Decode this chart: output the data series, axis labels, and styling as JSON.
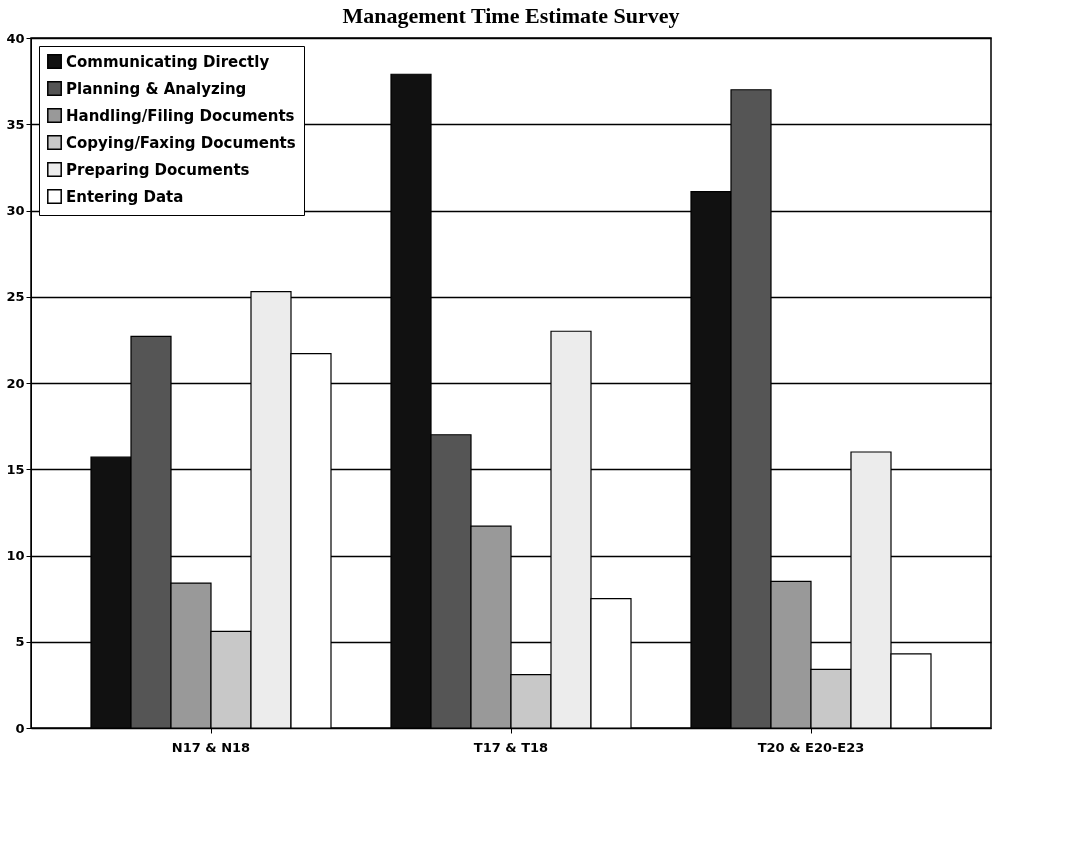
{
  "chart_data": {
    "type": "bar",
    "title": "Management Time Estimate Survey",
    "categories": [
      "N17 & N18",
      "T17 & T18",
      "T20 & E20-E23"
    ],
    "series": [
      {
        "name": "Communicating Directly",
        "color": "#111111",
        "values": [
          15.7,
          37.9,
          31.1
        ]
      },
      {
        "name": "Planning & Analyzing",
        "color": "#555555",
        "values": [
          22.7,
          17.0,
          37.0
        ]
      },
      {
        "name": "Handling/Filing Documents",
        "color": "#999999",
        "values": [
          8.4,
          11.7,
          8.5
        ]
      },
      {
        "name": "Copying/Faxing Documents",
        "color": "#c8c8c8",
        "values": [
          5.6,
          3.1,
          3.4
        ]
      },
      {
        "name": "Preparing Documents",
        "color": "#ececec",
        "values": [
          25.3,
          23.0,
          16.0
        ]
      },
      {
        "name": "Entering Data",
        "color": "#ffffff",
        "values": [
          21.7,
          7.5,
          4.3
        ]
      }
    ],
    "ylim": [
      0,
      40
    ],
    "yticks": [
      0,
      5,
      10,
      15,
      20,
      25,
      30,
      35,
      40
    ],
    "grid": "y",
    "legend": "top left"
  }
}
